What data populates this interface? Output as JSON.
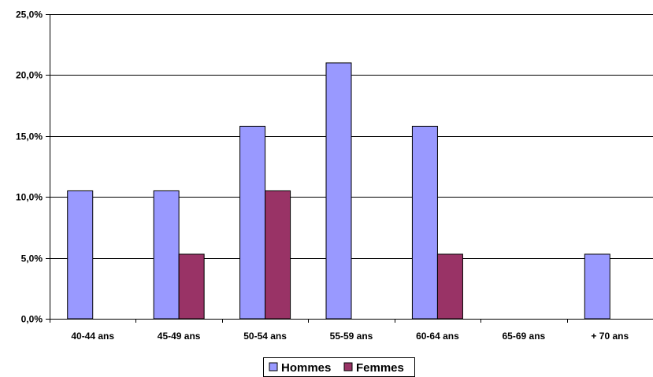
{
  "chart_data": {
    "type": "bar",
    "title": "",
    "xlabel": "",
    "ylabel": "",
    "categories": [
      "40-44 ans",
      "45-49 ans",
      "50-54 ans",
      "55-59 ans",
      "60-64 ans",
      "65-69 ans",
      "+ 70 ans"
    ],
    "series": [
      {
        "name": "Hommes",
        "color": "#9999ff",
        "values": [
          10.5,
          10.5,
          15.8,
          21.0,
          15.8,
          0.0,
          5.3
        ]
      },
      {
        "name": "Femmes",
        "color": "#993366",
        "values": [
          0.0,
          5.3,
          10.5,
          0.0,
          5.3,
          0.0,
          0.0
        ]
      }
    ],
    "ylim": [
      0,
      25
    ],
    "yticks": [
      0,
      5,
      10,
      15,
      20,
      25
    ],
    "ytick_labels": [
      "0,0%",
      "5,0%",
      "10,0%",
      "15,0%",
      "20,0%",
      "25,0%"
    ],
    "grid": true,
    "legend_position": "bottom"
  }
}
